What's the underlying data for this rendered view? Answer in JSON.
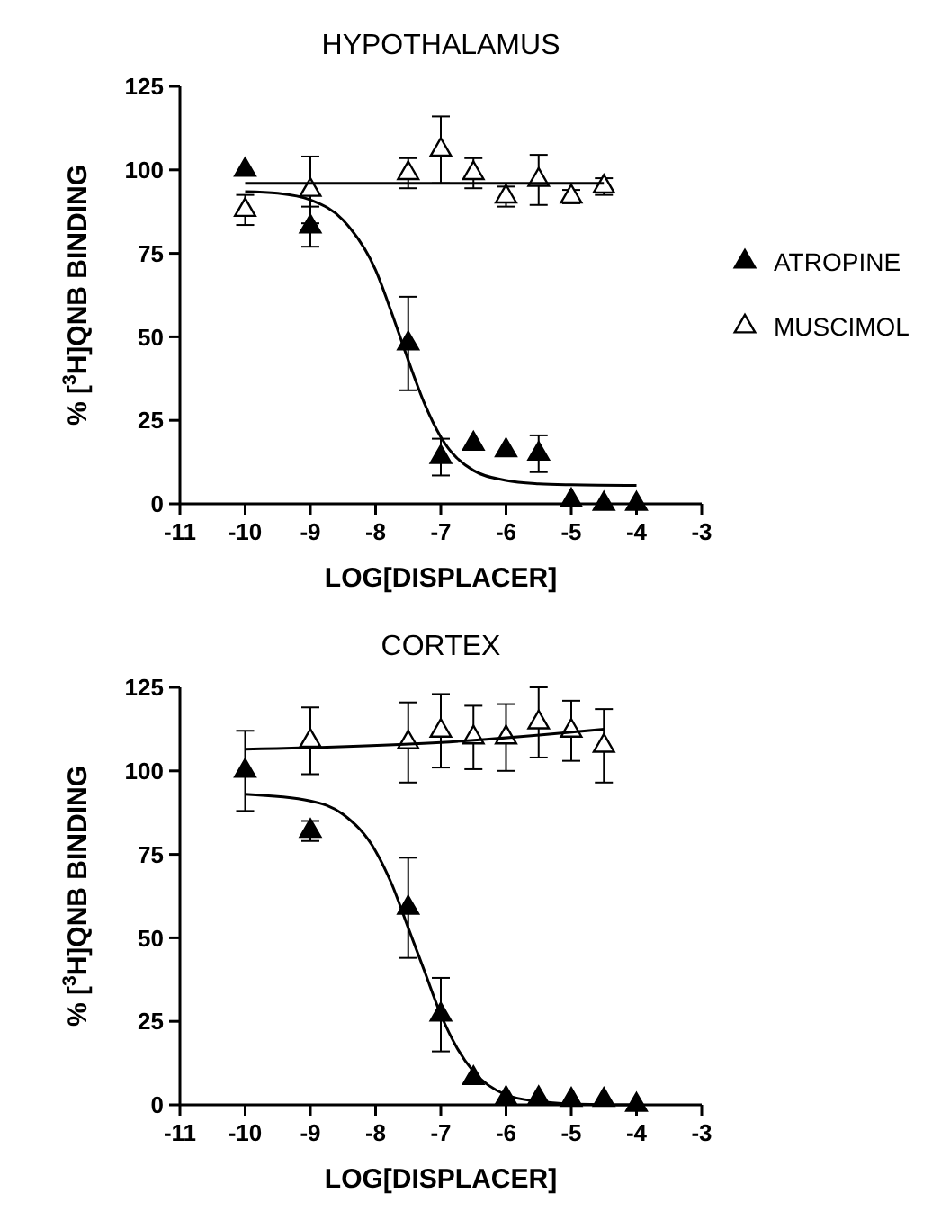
{
  "chart_data": [
    {
      "type": "scatter",
      "title": "HYPOTHALAMUS",
      "xlabel": "LOG[DISPLACER]",
      "ylabel": "% [$^{3}$H]QNB BINDING",
      "xlim": [
        -11,
        -3
      ],
      "xticks": [
        -11,
        -10,
        -9,
        -8,
        -7,
        -6,
        -5,
        -4,
        -3
      ],
      "ylim": [
        0,
        125
      ],
      "yticks": [
        0,
        25,
        50,
        75,
        100,
        125
      ],
      "grid": false,
      "legend": "right",
      "marker": "triangle",
      "series": [
        {
          "name": "ATROPINE",
          "color": "#000000",
          "x": [
            -10,
            -9,
            -7.5,
            -7,
            -6.5,
            -6,
            -5.5,
            -5,
            -4.5,
            -4
          ],
          "values": [
            100,
            83,
            48,
            14,
            18,
            16,
            15,
            1,
            0,
            0
          ],
          "errors": [
            null,
            6,
            14,
            5.5,
            null,
            null,
            5.5,
            null,
            null,
            null
          ]
        },
        {
          "name": "MUSCIMOL",
          "color": "#ffffff",
          "x": [
            -10,
            -9,
            -7.5,
            -7,
            -6.5,
            -6,
            -5.5,
            -5,
            -4.5
          ],
          "values": [
            88,
            94,
            99,
            106,
            99,
            92,
            97,
            92,
            95
          ],
          "errors": [
            4.5,
            10,
            4.5,
            10,
            4.5,
            3,
            7.5,
            2,
            2.5
          ]
        },
        {
          "type": "line",
          "marker": "none",
          "color": "#000000",
          "x": [
            -10,
            -9.5,
            -9,
            -8.5,
            -8,
            -7.75,
            -7.5,
            -7.25,
            -7,
            -6.5,
            -6,
            -5.5,
            -5,
            -4
          ],
          "values": [
            93.5,
            93,
            91,
            85,
            70,
            57,
            43,
            30,
            20,
            10,
            7,
            6,
            5.7,
            5.5
          ]
        },
        {
          "type": "line",
          "marker": "none",
          "color": "#000000",
          "x": [
            -10,
            -4.5
          ],
          "values": [
            96,
            96
          ]
        }
      ]
    },
    {
      "type": "scatter",
      "title": "CORTEX",
      "xlabel": "LOG[DISPLACER]",
      "ylabel": "% [$^{3}$H]QNB BINDING",
      "xlim": [
        -11,
        -3
      ],
      "xticks": [
        -11,
        -10,
        -9,
        -8,
        -7,
        -6,
        -5,
        -4,
        -3
      ],
      "ylim": [
        0,
        125
      ],
      "yticks": [
        0,
        25,
        50,
        75,
        100,
        125
      ],
      "grid": false,
      "legend": false,
      "marker": "triangle",
      "series": [
        {
          "color": "#000000",
          "x": [
            -10,
            -9,
            -7.5,
            -7,
            -6.5,
            -6,
            -5.5,
            -5,
            -4.5,
            -4
          ],
          "values": [
            100,
            82,
            59,
            27,
            8,
            2,
            2,
            1.5,
            1.5,
            0
          ],
          "errors": [
            12,
            3,
            15,
            11,
            null,
            null,
            null,
            null,
            null,
            null
          ]
        },
        {
          "color": "#ffffff",
          "x": [
            -9,
            -7.5,
            -7,
            -6.5,
            -6,
            -5.5,
            -5,
            -4.5
          ],
          "values": [
            109,
            108.5,
            112,
            110,
            110,
            114.5,
            112,
            107.5
          ],
          "errors": [
            10,
            12,
            11,
            9.5,
            10,
            10.5,
            9,
            11
          ]
        },
        {
          "type": "line",
          "marker": "none",
          "color": "#000000",
          "x": [
            -10,
            -9,
            -8.5,
            -8,
            -7.75,
            -7.5,
            -7.25,
            -7,
            -6.75,
            -6.5,
            -6,
            -5.5,
            -5,
            -4
          ],
          "values": [
            93,
            91,
            87,
            76,
            66,
            53,
            40,
            27,
            17,
            10,
            3,
            1,
            0.3,
            0
          ]
        },
        {
          "type": "line",
          "marker": "none",
          "color": "#000000",
          "x": [
            -10,
            -7,
            -4.5
          ],
          "values": [
            106.5,
            108.5,
            112.5
          ]
        }
      ]
    }
  ]
}
